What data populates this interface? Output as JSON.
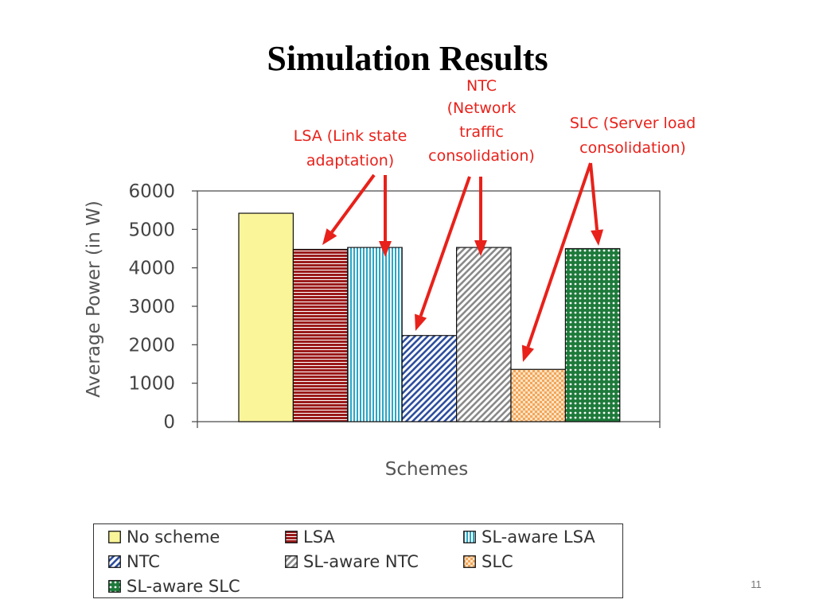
{
  "slide": {
    "title": "Simulation Results",
    "number": "11"
  },
  "annotations": {
    "lsa": [
      "LSA (Link state",
      "adaptation)"
    ],
    "ntc": [
      "NTC",
      "(Network",
      "traffic",
      "consolidation)"
    ],
    "slc": [
      "SLC (Server load",
      "consolidation)"
    ],
    "color": "#e8211a"
  },
  "chart_data": {
    "type": "bar",
    "categories": [
      "No scheme",
      "LSA",
      "SL-aware LSA",
      "NTC",
      "SL-aware NTC",
      "SLC",
      "SL-aware SLC"
    ],
    "values": [
      5420,
      4480,
      4530,
      2240,
      4530,
      1360,
      4500
    ],
    "title": "",
    "xlabel": "Schemes",
    "ylabel": "Average Power (in W)",
    "ylim": [
      0,
      6000
    ],
    "yticks": [
      "0",
      "1000",
      "2000",
      "3000",
      "4000",
      "5000",
      "6000"
    ],
    "grid": false,
    "legend_position": "bottom",
    "series_styles": [
      {
        "pattern": "solid",
        "fill": "#fbf59a",
        "stroke": "#000000"
      },
      {
        "pattern": "horizontal-lines",
        "fill": "#9b1b1b",
        "stroke": "#000000"
      },
      {
        "pattern": "vertical-lines",
        "fill": "#2aa6c6",
        "stroke": "#000000"
      },
      {
        "pattern": "diagonal-lines",
        "fill": "#2e4f9f",
        "stroke": "#000000"
      },
      {
        "pattern": "diagonal-lines",
        "fill": "#8a8a8a",
        "stroke": "#000000"
      },
      {
        "pattern": "small-checker",
        "fill": "#f2a65a",
        "stroke": "#000000"
      },
      {
        "pattern": "dots",
        "fill": "#1d7a3a",
        "stroke": "#000000"
      }
    ]
  }
}
